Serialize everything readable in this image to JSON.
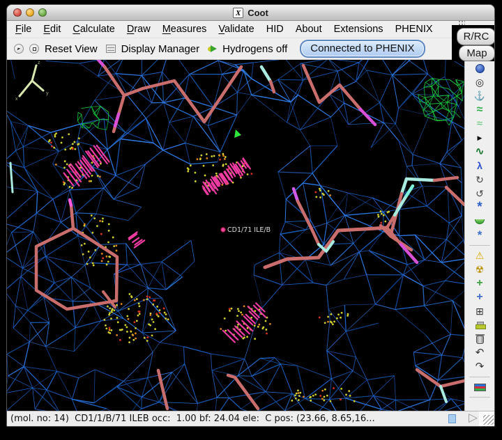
{
  "window": {
    "title": "Coot"
  },
  "menubar": {
    "items": [
      {
        "name": "menu-file",
        "label": "File",
        "mnemonic": 0
      },
      {
        "name": "menu-edit",
        "label": "Edit",
        "mnemonic": 0
      },
      {
        "name": "menu-calculate",
        "label": "Calculate",
        "mnemonic": 0
      },
      {
        "name": "menu-draw",
        "label": "Draw",
        "mnemonic": 0
      },
      {
        "name": "menu-measures",
        "label": "Measures",
        "mnemonic": 0
      },
      {
        "name": "menu-validate",
        "label": "Validate",
        "mnemonic": 0
      },
      {
        "name": "menu-hid",
        "label": "HID",
        "mnemonic": -1
      },
      {
        "name": "menu-about",
        "label": "About",
        "mnemonic": -1
      },
      {
        "name": "menu-extensions",
        "label": "Extensions",
        "mnemonic": -1
      },
      {
        "name": "menu-phenix",
        "label": "PHENIX",
        "mnemonic": -1
      }
    ]
  },
  "toolbar": {
    "reset_view": "Reset View",
    "display_manager": "Display Manager",
    "hydrogens": "Hydrogens off",
    "phenix": "Connected to PHENIX"
  },
  "side_buttons": {
    "rrc": "R/RC",
    "map": "Map"
  },
  "sidebar": {
    "icons": [
      {
        "name": "globe-icon",
        "type": "globe"
      },
      {
        "name": "recentre-icon",
        "glyph": "◎",
        "color": "#222",
        "size": 14
      },
      {
        "name": "anchor-icon",
        "glyph": "⚓",
        "color": "#2a7f9f",
        "size": 13
      },
      {
        "name": "real-space-refine-icon",
        "glyph": "≈",
        "color": "#2fae4a",
        "size": 16,
        "bold": true
      },
      {
        "name": "regularize-icon",
        "glyph": "≈",
        "color": "#57c06b",
        "size": 15
      },
      {
        "name": "play-icon",
        "glyph": "▶",
        "color": "#111",
        "size": 9
      },
      {
        "name": "rigid-body-fit-icon",
        "glyph": "∿",
        "color": "#1c7a33",
        "size": 15,
        "bold": true
      },
      {
        "name": "rotate-translate-icon",
        "glyph": "λ",
        "color": "#2b4fd0",
        "size": 14,
        "bold": true
      },
      {
        "name": "auto-fit-rotamer-icon",
        "glyph": "↻",
        "color": "#444",
        "size": 14
      },
      {
        "name": "rotamers-icon",
        "glyph": "↺",
        "color": "#444",
        "size": 14
      },
      {
        "name": "edit-chi-angles-icon",
        "glyph": "*",
        "color": "#2b62c8",
        "size": 19,
        "bold": true
      },
      {
        "name": "side-view-icon",
        "type": "hemi"
      },
      {
        "name": "flip-sidechain-icon",
        "glyph": "*",
        "color": "#3b72c8",
        "size": 17,
        "bold": true
      },
      {
        "type": "sep",
        "name": "sidebar-separator"
      },
      {
        "name": "warning-triangle-icon",
        "glyph": "⚠",
        "color": "#d8a800",
        "size": 14
      },
      {
        "name": "radiation-icon",
        "glyph": "☢",
        "color": "#b89000",
        "size": 14
      },
      {
        "name": "add-terminal-residue-icon",
        "glyph": "+",
        "color": "#3fa33f",
        "size": 16,
        "bold": true
      },
      {
        "name": "add-alt-conf-icon",
        "glyph": "+",
        "color": "#3f6fc3",
        "size": 16,
        "bold": true
      },
      {
        "name": "add-atom-icon",
        "glyph": "⊞",
        "color": "#333",
        "size": 14
      },
      {
        "name": "brush-icon",
        "type": "brush"
      },
      {
        "name": "delete-icon",
        "type": "trash"
      },
      {
        "name": "undo-icon",
        "glyph": "↶",
        "color": "#333",
        "size": 15
      },
      {
        "name": "redo-icon",
        "glyph": "↷",
        "color": "#333",
        "size": 15
      },
      {
        "type": "sep",
        "name": "sidebar-separator"
      },
      {
        "name": "flag-icon",
        "type": "flag"
      },
      {
        "type": "sep",
        "name": "sidebar-separator"
      }
    ]
  },
  "canvas": {
    "label": "CD1/71 ILE/B",
    "axis_labels": [
      "x",
      "y",
      "z"
    ],
    "colors": {
      "mesh": "#1d66cf",
      "mesh_dark": "#134a9e",
      "mesh_bright": "#2f7ce8",
      "difference_map": "#17c93f",
      "model": "#c96d6d",
      "clash": "#f03ca2",
      "magenta": "#d84fd8",
      "pink": "#ff5adf",
      "purple": "#cf5ae8",
      "cyan": "#a9ecdf",
      "bright_cyan": "#7ff0dc",
      "dot_yellow": "#cfcf2e",
      "dot_orange": "#e0851e",
      "dot_red": "#dd3222",
      "axes": "#d9e8ae",
      "arrow_green": "#2ee63c",
      "label_color": "#dcdcdc"
    }
  },
  "statusbar": {
    "text": "(mol. no: 14)  CD1/1/B/71 ILEB occ:  1.00 bf: 24.04 ele:  C pos: (23.66, 8.65,16..."
  }
}
